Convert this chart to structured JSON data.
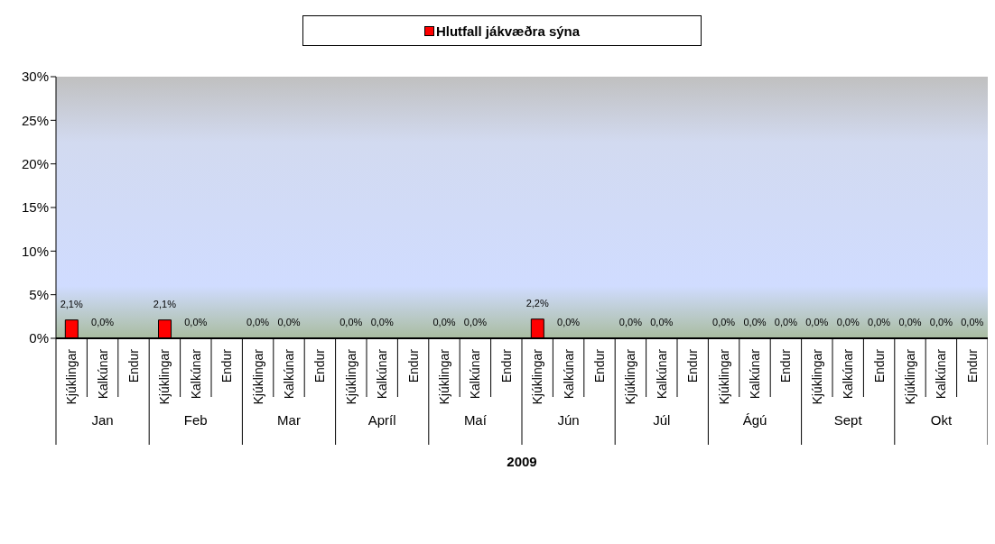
{
  "chart_data": {
    "type": "bar",
    "xlabel": "2009",
    "legend": "top",
    "categories": [
      "Kjúklingar",
      "Kalkúnar",
      "Endur",
      "Kjúklingar",
      "Kalkúnar",
      "Endur",
      "Kjúklingar",
      "Kalkúnar",
      "Endur",
      "Kjúklingar",
      "Kalkúnar",
      "Endur",
      "Kjúklingar",
      "Kalkúnar",
      "Endur",
      "Kjúklingar",
      "Kalkúnar",
      "Endur",
      "Kjúklingar",
      "Kalkúnar",
      "Endur",
      "Kjúklingar",
      "Kalkúnar",
      "Endur",
      "Kjúklingar",
      "Kalkúnar",
      "Endur",
      "Kjúklingar",
      "Kalkúnar",
      "Endur"
    ],
    "annotations": [
      "Jan",
      "Feb",
      "Mar",
      "Apríl",
      "Maí",
      "Jún",
      "Júl",
      "Ágú",
      "Sept",
      "Okt"
    ],
    "series": [
      {
        "name": "Hlutfall jákvæðra sýna",
        "color": "#ff0000",
        "values": [
          2.1,
          0,
          null,
          2.1,
          0,
          null,
          0,
          0,
          null,
          0,
          0,
          null,
          0,
          0,
          null,
          2.2,
          0,
          null,
          0,
          0,
          null,
          0,
          0,
          0,
          0,
          0,
          0,
          0,
          0,
          0
        ],
        "value_labels": [
          "2,1%",
          "0,0%",
          null,
          "2,1%",
          "0,0%",
          null,
          "0,0%",
          "0,0%",
          null,
          "0,0%",
          "0,0%",
          null,
          "0,0%",
          "0,0%",
          null,
          "2,2%",
          "0,0%",
          null,
          "0,0%",
          "0,0%",
          null,
          "0,0%",
          "0,0%",
          "0,0%",
          "0,0%",
          "0,0%",
          "0,0%",
          "0,0%",
          "0,0%",
          "0,0%"
        ]
      }
    ],
    "ylim": [
      0,
      30
    ],
    "yticks": [
      {
        "value": 0,
        "label": "0%"
      },
      {
        "value": 5,
        "label": "5%"
      },
      {
        "value": 10,
        "label": "10%"
      },
      {
        "value": 15,
        "label": "15%"
      },
      {
        "value": 20,
        "label": "20%"
      },
      {
        "value": 25,
        "label": "25%"
      },
      {
        "value": 30,
        "label": "30%"
      }
    ]
  }
}
